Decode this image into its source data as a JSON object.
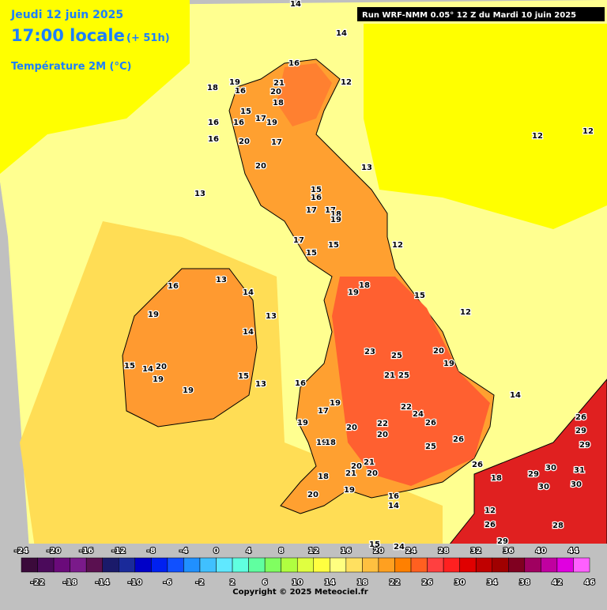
{
  "header": {
    "date": "Jeudi 12 juin 2025",
    "time": "17:00 locale",
    "lead": "(+ 51h)",
    "variable": "Température 2M (°C)",
    "run": "Run WRF-NMM 0.05° 12 Z du Mardi 10 juin 2025"
  },
  "map": {
    "labels": [
      14,
      14,
      16,
      19,
      18,
      16,
      21,
      20,
      12,
      18,
      15,
      17,
      19,
      16,
      16,
      16,
      20,
      17,
      12,
      12,
      13,
      20,
      13,
      15,
      16,
      17,
      17,
      18,
      19,
      17,
      15,
      15,
      12,
      13,
      16,
      18,
      19,
      14,
      15,
      12,
      13,
      19,
      14,
      23,
      25,
      20,
      19,
      15,
      14,
      20,
      19,
      21,
      25,
      13,
      15,
      16,
      19,
      19,
      22,
      24,
      17,
      14,
      26,
      29,
      26,
      22,
      20,
      19,
      20,
      26,
      25,
      19,
      18,
      29,
      21,
      20,
      26,
      21,
      20,
      29,
      30,
      31,
      18,
      18,
      30,
      30,
      20,
      19,
      16,
      14,
      12,
      26,
      28,
      29,
      15,
      24
    ]
  },
  "legend": {
    "top_ticks": [
      -24,
      -20,
      -16,
      -12,
      -8,
      -4,
      0,
      4,
      8,
      12,
      16,
      20,
      24,
      28,
      32,
      36,
      40,
      44
    ],
    "bottom_ticks": [
      -22,
      -18,
      -14,
      -10,
      -6,
      -2,
      2,
      6,
      10,
      14,
      18,
      22,
      26,
      30,
      34,
      38,
      42,
      46
    ],
    "colors": [
      "#3b0a3b",
      "#4b0a5b",
      "#6a0a7a",
      "#7a1a8a",
      "#5a1050",
      "#1a1a6a",
      "#1a2a9a",
      "#0000c8",
      "#0020f0",
      "#1050ff",
      "#2090ff",
      "#40c0ff",
      "#60e8ff",
      "#60ffe0",
      "#60ffa0",
      "#80ff60",
      "#b0ff40",
      "#e0ff40",
      "#ffff40",
      "#ffff80",
      "#ffe060",
      "#ffc040",
      "#ffa020",
      "#ff8000",
      "#ff6020",
      "#ff4040",
      "#ff2020",
      "#e00000",
      "#c00000",
      "#a00000",
      "#800020",
      "#a00060",
      "#c000a0",
      "#e000e0",
      "#ff60ff"
    ]
  },
  "footer": {
    "copyright": "Copyright © 2025 Meteociel.fr"
  }
}
